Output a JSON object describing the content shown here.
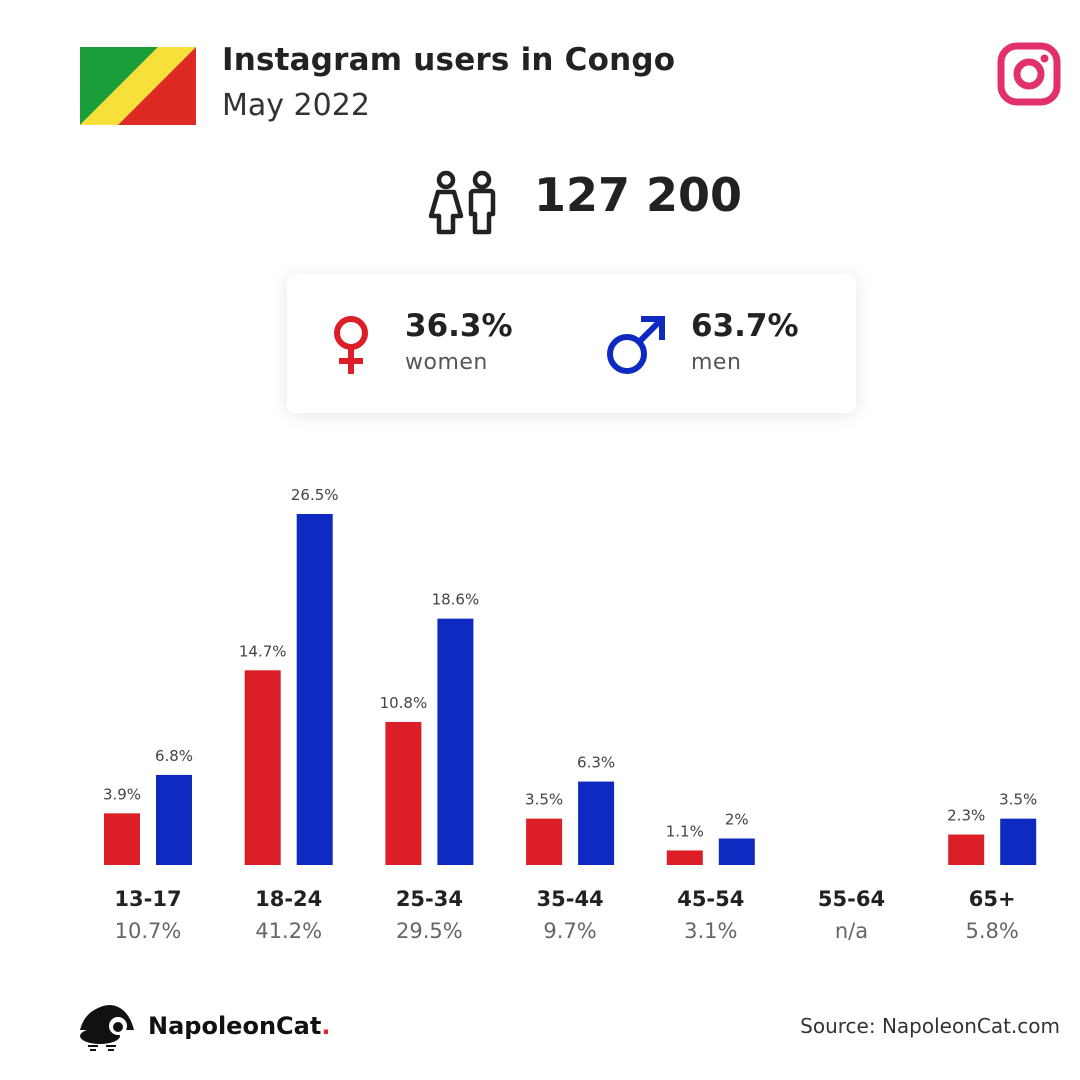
{
  "header": {
    "title": "Instagram users in Congo",
    "subtitle": "May 2022"
  },
  "flag": {
    "colors": [
      "#1a9e3a",
      "#f7e03a",
      "#de2a25"
    ]
  },
  "brand_icon": "instagram-icon",
  "total": {
    "icon": "users-icon",
    "value": "127 200"
  },
  "gender": {
    "women": {
      "icon": "female-icon",
      "pct": "36.3%",
      "label": "women",
      "color": "#dc1f26"
    },
    "men": {
      "icon": "male-icon",
      "pct": "63.7%",
      "label": "men",
      "color": "#0f2ac1"
    }
  },
  "chart_data": {
    "type": "bar",
    "categories": [
      "13-17",
      "18-24",
      "25-34",
      "35-44",
      "45-54",
      "55-64",
      "65+"
    ],
    "category_totals": [
      "10.7%",
      "41.2%",
      "29.5%",
      "9.7%",
      "3.1%",
      "n/a",
      "5.8%"
    ],
    "series": [
      {
        "values": [
          3.9,
          14.7,
          10.8,
          3.5,
          1.1,
          null,
          2.3
        ],
        "labels": [
          "3.9%",
          "14.7%",
          "10.8%",
          "3.5%",
          "1.1%",
          "",
          "2.3%"
        ],
        "color": "#dc1f26"
      },
      {
        "values": [
          6.8,
          26.5,
          18.6,
          6.3,
          2,
          null,
          3.5
        ],
        "labels": [
          "6.8%",
          "26.5%",
          "18.6%",
          "6.3%",
          "2%",
          "",
          "3.5%"
        ],
        "color": "#0f2ac1"
      }
    ],
    "ylim": [
      0,
      26.5
    ],
    "grid": false
  },
  "footer": {
    "brand_name": "NapoleonCat",
    "brand_dot": ".",
    "source": "Source: NapoleonCat.com"
  }
}
